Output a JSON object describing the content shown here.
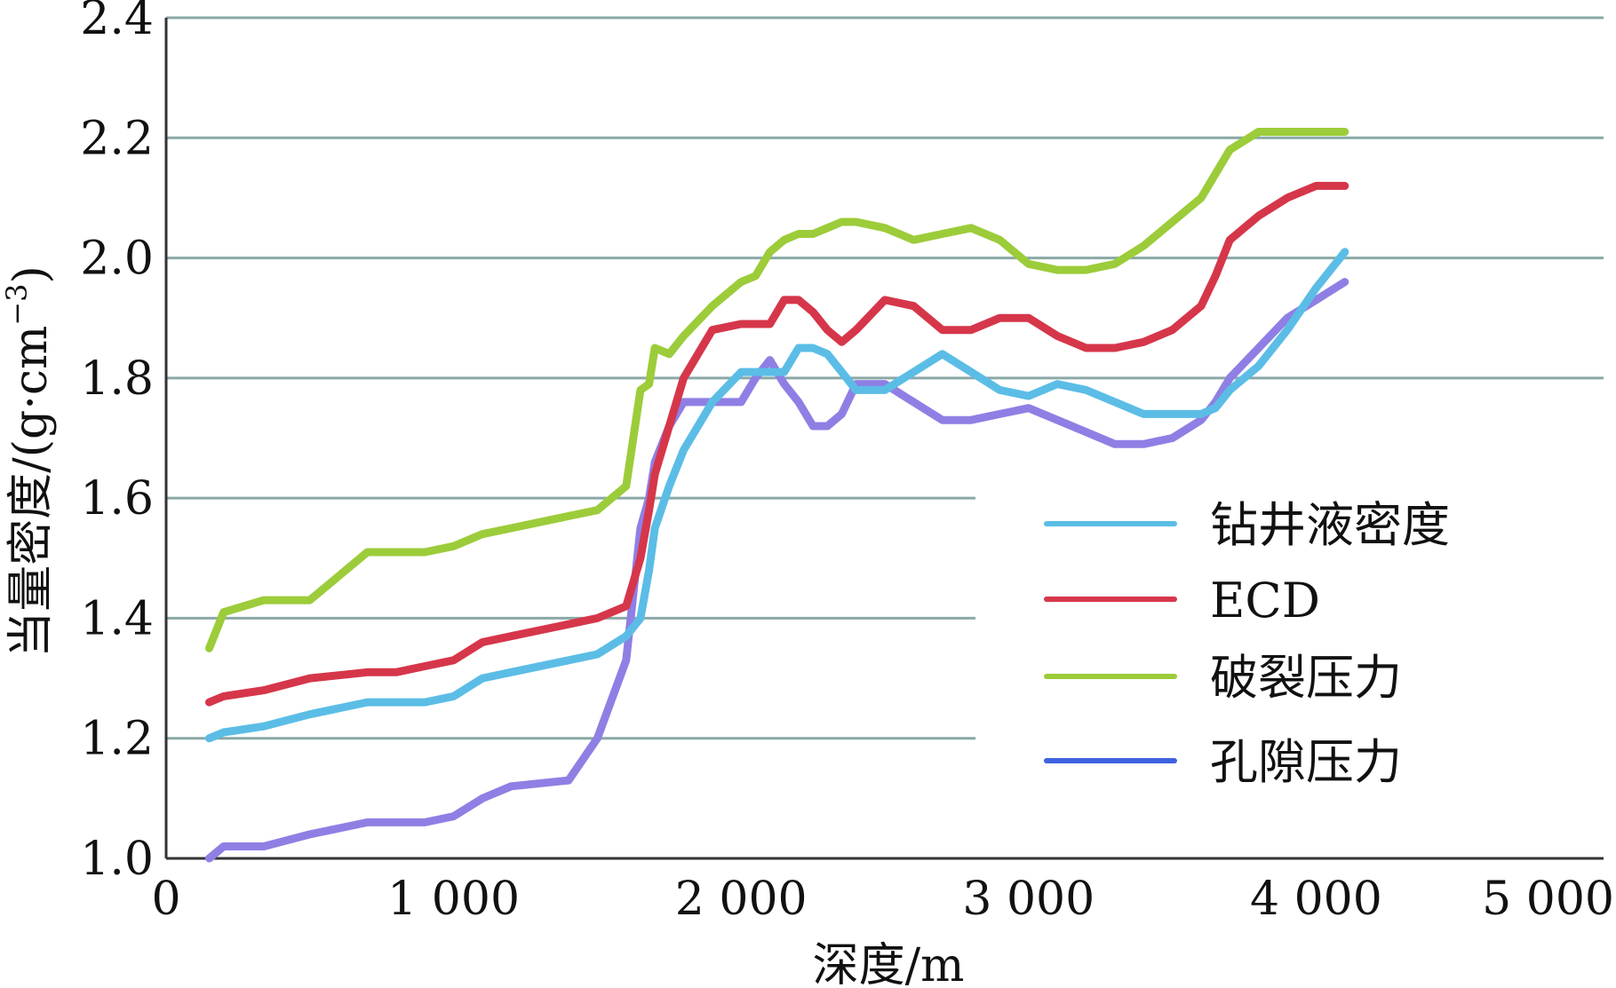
{
  "chart_data": {
    "type": "line",
    "title": "",
    "xlabel": "深度/m",
    "ylabel_main": "当量密度/(g·cm",
    "ylabel_exp": "−3",
    "ylabel_close": ")",
    "xlim": [
      0,
      5000
    ],
    "ylim": [
      1.0,
      2.4
    ],
    "x_ticks": [
      0,
      1000,
      2000,
      3000,
      4000,
      5000
    ],
    "x_tick_labels": [
      "0",
      "1 000",
      "2 000",
      "3 000",
      "4 000",
      "5 000"
    ],
    "y_ticks": [
      1.0,
      1.2,
      1.4,
      1.6,
      1.8,
      2.0,
      2.2,
      2.4
    ],
    "y_tick_labels": [
      "1.0",
      "1.2",
      "1.4",
      "1.6",
      "1.8",
      "2.0",
      "2.2",
      "2.4"
    ],
    "grid": true,
    "legend_position": "bottom-right",
    "series": [
      {
        "name": "钻井液密度",
        "color": "#5bbde6",
        "x": [
          150,
          200,
          340,
          500,
          700,
          800,
          900,
          1000,
          1100,
          1200,
          1400,
          1500,
          1600,
          1650,
          1680,
          1700,
          1750,
          1800,
          1900,
          2000,
          2050,
          2100,
          2150,
          2200,
          2250,
          2300,
          2350,
          2400,
          2500,
          2600,
          2700,
          2800,
          2900,
          3000,
          3100,
          3200,
          3300,
          3400,
          3500,
          3600,
          3650,
          3700,
          3800,
          3900,
          4000,
          4100
        ],
        "values": [
          1.2,
          1.21,
          1.22,
          1.24,
          1.26,
          1.26,
          1.26,
          1.27,
          1.3,
          1.31,
          1.33,
          1.34,
          1.37,
          1.4,
          1.48,
          1.55,
          1.62,
          1.68,
          1.76,
          1.81,
          1.81,
          1.81,
          1.81,
          1.85,
          1.85,
          1.84,
          1.81,
          1.78,
          1.78,
          1.81,
          1.84,
          1.81,
          1.78,
          1.77,
          1.79,
          1.78,
          1.76,
          1.74,
          1.74,
          1.74,
          1.75,
          1.78,
          1.82,
          1.88,
          1.95,
          2.01
        ]
      },
      {
        "name": "ECD",
        "color": "#d6364a",
        "x": [
          150,
          200,
          340,
          500,
          700,
          800,
          900,
          1000,
          1100,
          1200,
          1400,
          1500,
          1600,
          1650,
          1680,
          1700,
          1750,
          1800,
          1900,
          2000,
          2050,
          2100,
          2150,
          2200,
          2250,
          2300,
          2350,
          2400,
          2500,
          2600,
          2700,
          2800,
          2900,
          3000,
          3100,
          3200,
          3300,
          3400,
          3500,
          3600,
          3650,
          3700,
          3800,
          3900,
          4000,
          4100
        ],
        "values": [
          1.26,
          1.27,
          1.28,
          1.3,
          1.31,
          1.31,
          1.32,
          1.33,
          1.36,
          1.37,
          1.39,
          1.4,
          1.42,
          1.5,
          1.58,
          1.64,
          1.72,
          1.8,
          1.88,
          1.89,
          1.89,
          1.89,
          1.93,
          1.93,
          1.91,
          1.88,
          1.86,
          1.88,
          1.93,
          1.92,
          1.88,
          1.88,
          1.9,
          1.9,
          1.87,
          1.85,
          1.85,
          1.86,
          1.88,
          1.92,
          1.97,
          2.03,
          2.07,
          2.1,
          2.12,
          2.12
        ]
      },
      {
        "name": "破裂压力",
        "color": "#9ccc3a",
        "x": [
          150,
          200,
          340,
          500,
          700,
          800,
          900,
          1000,
          1100,
          1200,
          1400,
          1500,
          1600,
          1650,
          1680,
          1700,
          1750,
          1800,
          1900,
          2000,
          2050,
          2100,
          2150,
          2200,
          2250,
          2300,
          2350,
          2400,
          2500,
          2600,
          2700,
          2800,
          2900,
          3000,
          3100,
          3200,
          3300,
          3400,
          3500,
          3600,
          3650,
          3700,
          3800,
          3900,
          4000,
          4100
        ],
        "values": [
          1.35,
          1.41,
          1.43,
          1.43,
          1.51,
          1.51,
          1.51,
          1.52,
          1.54,
          1.55,
          1.57,
          1.58,
          1.62,
          1.78,
          1.79,
          1.85,
          1.84,
          1.87,
          1.92,
          1.96,
          1.97,
          2.01,
          2.03,
          2.04,
          2.04,
          2.05,
          2.06,
          2.06,
          2.05,
          2.03,
          2.04,
          2.05,
          2.03,
          1.99,
          1.98,
          1.98,
          1.99,
          2.02,
          2.06,
          2.1,
          2.14,
          2.18,
          2.21,
          2.21,
          2.21,
          2.21
        ]
      },
      {
        "name": "孔隙压力",
        "color": "#8f7fe4",
        "x": [
          150,
          200,
          340,
          500,
          700,
          800,
          900,
          1000,
          1100,
          1200,
          1400,
          1500,
          1600,
          1650,
          1680,
          1700,
          1750,
          1800,
          1900,
          2000,
          2050,
          2100,
          2150,
          2200,
          2250,
          2300,
          2350,
          2400,
          2500,
          2600,
          2700,
          2800,
          2900,
          3000,
          3100,
          3200,
          3300,
          3400,
          3500,
          3600,
          3650,
          3700,
          3800,
          3900,
          4000,
          4100
        ],
        "values": [
          1.0,
          1.02,
          1.02,
          1.04,
          1.06,
          1.06,
          1.06,
          1.07,
          1.1,
          1.12,
          1.13,
          1.2,
          1.33,
          1.55,
          1.6,
          1.66,
          1.72,
          1.76,
          1.76,
          1.76,
          1.8,
          1.83,
          1.79,
          1.76,
          1.72,
          1.72,
          1.74,
          1.79,
          1.79,
          1.76,
          1.73,
          1.73,
          1.74,
          1.75,
          1.73,
          1.71,
          1.69,
          1.69,
          1.7,
          1.73,
          1.76,
          1.8,
          1.85,
          1.9,
          1.93,
          1.96
        ]
      }
    ]
  }
}
